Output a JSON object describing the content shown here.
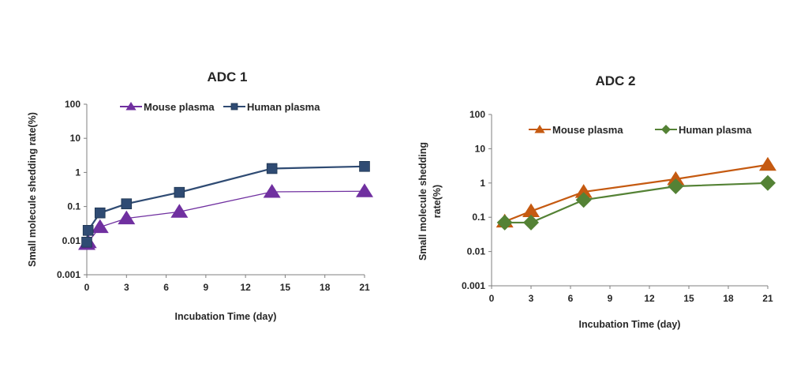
{
  "chart_data": [
    {
      "type": "line",
      "title": "ADC 1",
      "xlabel": "Incubation Time (day)",
      "ylabel": "Small molecule shedding rate(%)",
      "xlim": [
        0,
        21
      ],
      "ylim": [
        0.001,
        100
      ],
      "yscale": "log",
      "xticks": [
        "0",
        "3",
        "6",
        "9",
        "12",
        "15",
        "18",
        "21"
      ],
      "yticks": [
        "0.001",
        "0.01",
        "0.1",
        "1",
        "10",
        "100"
      ],
      "grid": false,
      "legend": "top",
      "series": [
        {
          "name": "Mouse plasma",
          "color": "#7030a0",
          "marker": "triangle",
          "x": [
            0,
            0.1,
            1,
            3,
            7,
            14,
            21
          ],
          "y": [
            0.008,
            0.009,
            0.025,
            0.045,
            0.07,
            0.27,
            0.28
          ]
        },
        {
          "name": "Human plasma",
          "color": "#2f4b73",
          "marker": "square",
          "x": [
            0,
            0.1,
            1,
            3,
            7,
            14,
            21
          ],
          "y": [
            0.009,
            0.02,
            0.065,
            0.12,
            0.26,
            1.3,
            1.5
          ]
        }
      ]
    },
    {
      "type": "line",
      "title": "ADC 2",
      "xlabel": "Incubation Time (day)",
      "ylabel": "Small molecule shedding rate(%)",
      "xlim": [
        0,
        21
      ],
      "ylim": [
        0.001,
        100
      ],
      "yscale": "log",
      "xticks": [
        "0",
        "3",
        "6",
        "9",
        "12",
        "15",
        "18",
        "21"
      ],
      "yticks": [
        "0.001",
        "0.01",
        "0.1",
        "1",
        "10",
        "100"
      ],
      "grid": false,
      "legend": "top",
      "series": [
        {
          "name": "Mouse plasma",
          "color": "#c55a11",
          "marker": "triangle",
          "x": [
            1,
            3,
            7,
            14,
            21
          ],
          "y": [
            0.075,
            0.15,
            0.55,
            1.3,
            3.4
          ]
        },
        {
          "name": "Human plasma",
          "color": "#548235",
          "marker": "diamond",
          "x": [
            1,
            3,
            7,
            14,
            21
          ],
          "y": [
            0.07,
            0.07,
            0.32,
            0.8,
            1.0
          ]
        }
      ]
    }
  ]
}
